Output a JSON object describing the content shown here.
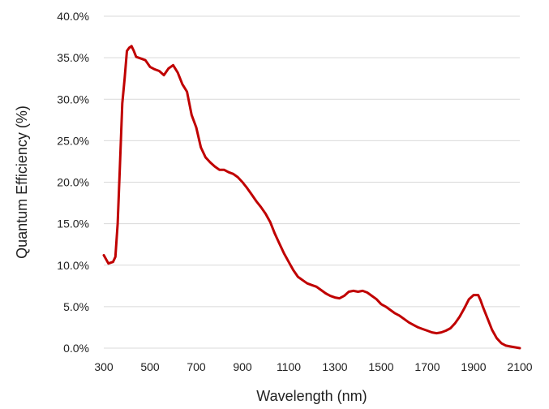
{
  "chart_data": {
    "type": "line",
    "title": "",
    "xlabel": "Wavelength (nm)",
    "ylabel": "Quantum Efficiency (%)",
    "xlim": [
      300,
      2100
    ],
    "ylim": [
      0,
      40
    ],
    "x_ticks": [
      300,
      500,
      700,
      900,
      1100,
      1300,
      1500,
      1700,
      1900,
      2100
    ],
    "x_tick_labels": [
      "300",
      "500",
      "700",
      "900",
      "1100",
      "1300",
      "1500",
      "1700",
      "1900",
      "2100"
    ],
    "y_ticks": [
      0,
      5,
      10,
      15,
      20,
      25,
      30,
      35,
      40
    ],
    "y_tick_labels": [
      "0.0%",
      "5.0%",
      "10.0%",
      "15.0%",
      "20.0%",
      "25.0%",
      "30.0%",
      "35.0%",
      "40.0%"
    ],
    "grid": "horizontal",
    "legend": "none",
    "line_color": "#c00000",
    "series": [
      {
        "x": [
          300,
          320,
          340,
          350,
          360,
          370,
          380,
          390,
          400,
          410,
          420,
          430,
          440,
          460,
          480,
          500,
          520,
          540,
          560,
          580,
          600,
          620,
          640,
          660,
          680,
          700,
          720,
          740,
          760,
          780,
          800,
          820,
          840,
          860,
          880,
          900,
          920,
          940,
          960,
          980,
          1000,
          1020,
          1040,
          1060,
          1080,
          1100,
          1120,
          1140,
          1160,
          1180,
          1200,
          1220,
          1240,
          1260,
          1280,
          1300,
          1320,
          1340,
          1360,
          1380,
          1400,
          1420,
          1440,
          1460,
          1480,
          1500,
          1520,
          1540,
          1560,
          1580,
          1600,
          1620,
          1640,
          1660,
          1680,
          1700,
          1720,
          1740,
          1760,
          1780,
          1800,
          1820,
          1840,
          1860,
          1880,
          1900,
          1920,
          1930,
          1940,
          1960,
          1980,
          2000,
          2020,
          2040,
          2060,
          2080,
          2100
        ],
        "values": [
          11.2,
          10.2,
          10.4,
          11.0,
          15.0,
          22.0,
          29.5,
          32.5,
          35.8,
          36.2,
          36.4,
          35.8,
          35.1,
          34.9,
          34.7,
          33.9,
          33.6,
          33.4,
          32.9,
          33.7,
          34.1,
          33.2,
          31.8,
          30.9,
          28.1,
          26.6,
          24.2,
          23.0,
          22.4,
          21.9,
          21.5,
          21.5,
          21.2,
          21.0,
          20.6,
          20.0,
          19.3,
          18.5,
          17.7,
          17.0,
          16.2,
          15.2,
          13.8,
          12.6,
          11.4,
          10.4,
          9.4,
          8.6,
          8.2,
          7.8,
          7.6,
          7.4,
          7.0,
          6.6,
          6.3,
          6.1,
          6.0,
          6.3,
          6.8,
          6.9,
          6.8,
          6.9,
          6.7,
          6.3,
          5.9,
          5.3,
          5.0,
          4.6,
          4.2,
          3.9,
          3.5,
          3.1,
          2.8,
          2.5,
          2.3,
          2.1,
          1.9,
          1.8,
          1.9,
          2.1,
          2.4,
          3.0,
          3.8,
          4.8,
          5.9,
          6.4,
          6.4,
          5.8,
          5.0,
          3.6,
          2.2,
          1.2,
          0.6,
          0.3,
          0.2,
          0.1,
          0.0
        ]
      }
    ]
  }
}
